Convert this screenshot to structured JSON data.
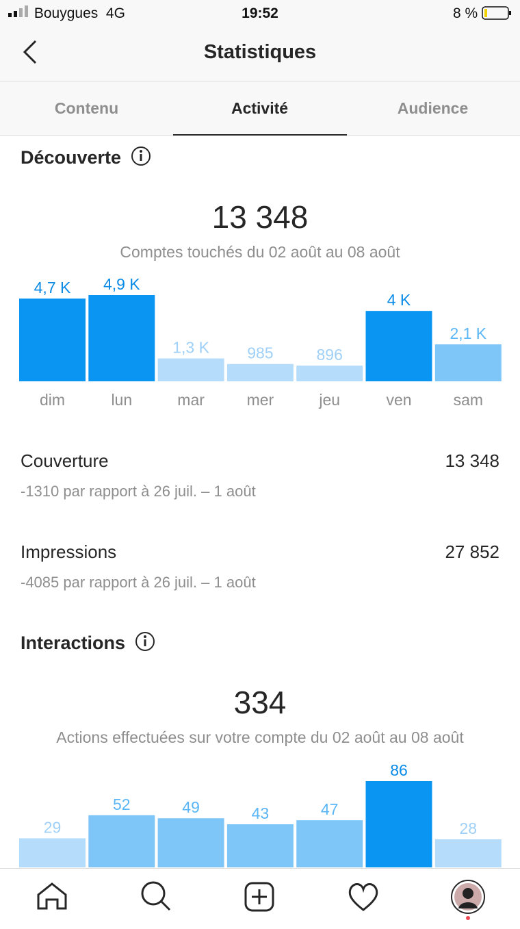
{
  "status_bar": {
    "carrier": "Bouygues",
    "network": "4G",
    "time": "19:52",
    "battery": "8 %"
  },
  "header": {
    "title": "Statistiques"
  },
  "tabs": [
    "Contenu",
    "Activité",
    "Audience"
  ],
  "discovery": {
    "title": "Découverte",
    "total": "13 348",
    "subtitle": "Comptes touchés du 02 août au 08 août",
    "chart": {
      "type": "bar",
      "categories": [
        "dim",
        "lun",
        "mar",
        "mer",
        "jeu",
        "ven",
        "sam"
      ],
      "values": [
        4700,
        4900,
        1300,
        985,
        896,
        4000,
        2100
      ],
      "value_labels": [
        "4,7 K",
        "4,9 K",
        "1,3 K",
        "985",
        "896",
        "4 K",
        "2,1 K"
      ],
      "colors": [
        "#0a95f2",
        "#0a95f2",
        "#b6dcfb",
        "#b6dcfb",
        "#b6dcfb",
        "#0a95f2",
        "#7fc6f8"
      ]
    }
  },
  "metrics": [
    {
      "label": "Couverture",
      "value": "13 348",
      "note": "-1310 par rapport à 26 juil. – 1 août"
    },
    {
      "label": "Impressions",
      "value": "27 852",
      "note": "-4085 par rapport à 26 juil. – 1 août"
    }
  ],
  "interactions": {
    "title": "Interactions",
    "total": "334",
    "subtitle": "Actions effectuées sur votre compte du 02 août au 08 août",
    "chart": {
      "type": "bar",
      "values": [
        29,
        52,
        49,
        43,
        47,
        86,
        28
      ],
      "colors": [
        "#b6dcfb",
        "#7fc6f8",
        "#7fc6f8",
        "#7fc6f8",
        "#7fc6f8",
        "#0a95f2",
        "#b6dcfb"
      ]
    }
  }
}
